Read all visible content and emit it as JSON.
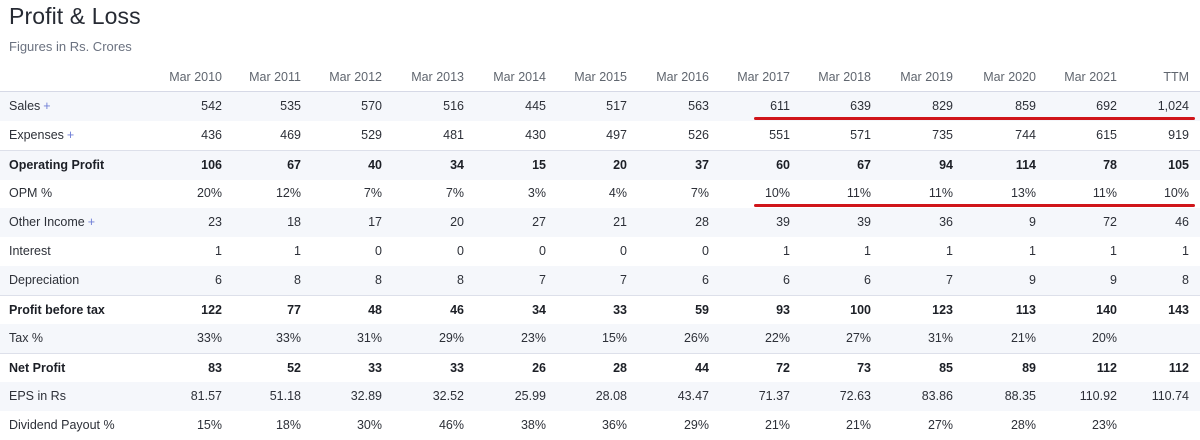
{
  "title": "Profit & Loss",
  "subtitle": "Figures in Rs. Crores",
  "columns": [
    "Mar 2010",
    "Mar 2011",
    "Mar 2012",
    "Mar 2013",
    "Mar 2014",
    "Mar 2015",
    "Mar 2016",
    "Mar 2017",
    "Mar 2018",
    "Mar 2019",
    "Mar 2020",
    "Mar 2021",
    "TTM"
  ],
  "plus_symbol": "+",
  "rows": [
    {
      "label": "Sales",
      "expandable": true,
      "bold": false,
      "values": [
        "542",
        "535",
        "570",
        "516",
        "445",
        "517",
        "563",
        "611",
        "639",
        "829",
        "859",
        "692",
        "1,024"
      ]
    },
    {
      "label": "Expenses",
      "expandable": true,
      "bold": false,
      "values": [
        "436",
        "469",
        "529",
        "481",
        "430",
        "497",
        "526",
        "551",
        "571",
        "735",
        "744",
        "615",
        "919"
      ]
    },
    {
      "label": "Operating Profit",
      "expandable": false,
      "bold": true,
      "values": [
        "106",
        "67",
        "40",
        "34",
        "15",
        "20",
        "37",
        "60",
        "67",
        "94",
        "114",
        "78",
        "105"
      ]
    },
    {
      "label": "OPM %",
      "expandable": false,
      "bold": false,
      "values": [
        "20%",
        "12%",
        "7%",
        "7%",
        "3%",
        "4%",
        "7%",
        "10%",
        "11%",
        "11%",
        "13%",
        "11%",
        "10%"
      ]
    },
    {
      "label": "Other Income",
      "expandable": true,
      "bold": false,
      "values": [
        "23",
        "18",
        "17",
        "20",
        "27",
        "21",
        "28",
        "39",
        "39",
        "36",
        "9",
        "72",
        "46"
      ]
    },
    {
      "label": "Interest",
      "expandable": false,
      "bold": false,
      "values": [
        "1",
        "1",
        "0",
        "0",
        "0",
        "0",
        "0",
        "1",
        "1",
        "1",
        "1",
        "1",
        "1"
      ]
    },
    {
      "label": "Depreciation",
      "expandable": false,
      "bold": false,
      "values": [
        "6",
        "8",
        "8",
        "8",
        "7",
        "7",
        "6",
        "6",
        "6",
        "7",
        "9",
        "9",
        "8"
      ]
    },
    {
      "label": "Profit before tax",
      "expandable": false,
      "bold": true,
      "values": [
        "122",
        "77",
        "48",
        "46",
        "34",
        "33",
        "59",
        "93",
        "100",
        "123",
        "113",
        "140",
        "143"
      ]
    },
    {
      "label": "Tax %",
      "expandable": false,
      "bold": false,
      "values": [
        "33%",
        "33%",
        "31%",
        "29%",
        "23%",
        "15%",
        "26%",
        "22%",
        "27%",
        "31%",
        "21%",
        "20%",
        ""
      ]
    },
    {
      "label": "Net Profit",
      "expandable": false,
      "bold": true,
      "values": [
        "83",
        "52",
        "33",
        "33",
        "26",
        "28",
        "44",
        "72",
        "73",
        "85",
        "89",
        "112",
        "112"
      ]
    },
    {
      "label": "EPS in Rs",
      "expandable": false,
      "bold": false,
      "values": [
        "81.57",
        "51.18",
        "32.89",
        "32.52",
        "25.99",
        "28.08",
        "43.47",
        "71.37",
        "72.63",
        "83.86",
        "88.35",
        "110.92",
        "110.74"
      ]
    },
    {
      "label": "Dividend Payout %",
      "expandable": false,
      "bold": false,
      "values": [
        "15%",
        "18%",
        "30%",
        "46%",
        "38%",
        "36%",
        "29%",
        "21%",
        "21%",
        "27%",
        "28%",
        "23%",
        ""
      ]
    }
  ],
  "annotations": [
    {
      "row": "Sales",
      "from_column": "Mar 2017",
      "to_column": "TTM",
      "color": "#d0151a"
    },
    {
      "row": "OPM %",
      "from_column": "Mar 2017",
      "to_column": "TTM",
      "color": "#d0151a"
    }
  ],
  "colors": {
    "alt_row": "#f5f7fb",
    "plus": "#6f7ed6",
    "annotation": "#d0151a"
  }
}
